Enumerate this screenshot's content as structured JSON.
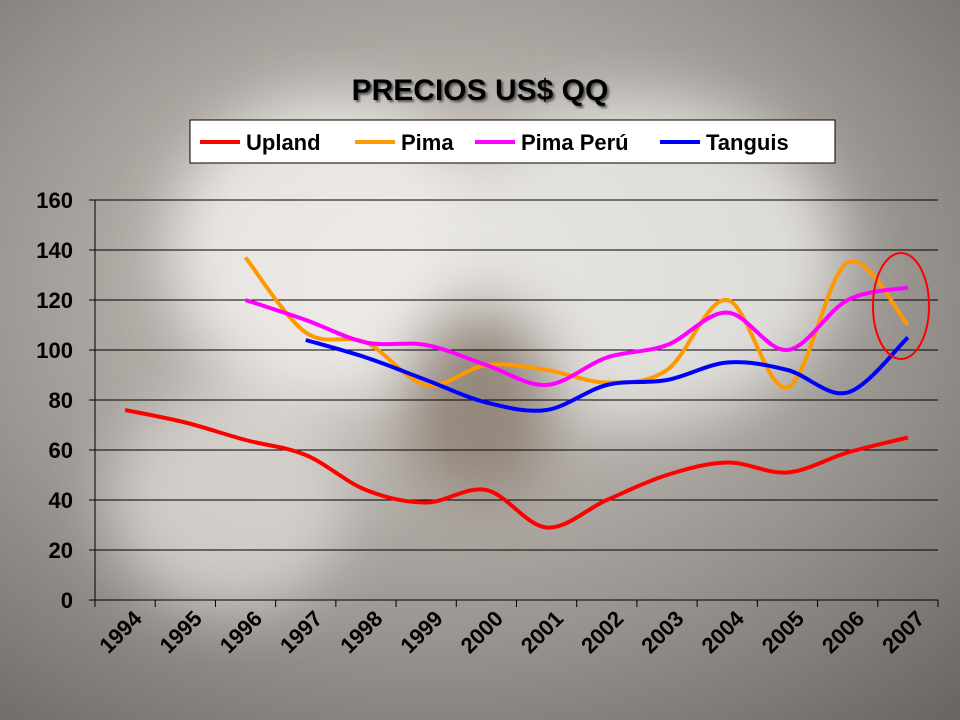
{
  "chart_data": {
    "type": "line",
    "title": "PRECIOS US$ QQ",
    "categories": [
      "1994",
      "1995",
      "1996",
      "1997",
      "1998",
      "1999",
      "2000",
      "2001",
      "2002",
      "2003",
      "2004",
      "2005",
      "2006",
      "2007"
    ],
    "series": [
      {
        "name": "Upland",
        "color": "#ff0000",
        "values": [
          76,
          71,
          64,
          58,
          44,
          39,
          44,
          29,
          40,
          50,
          55,
          51,
          59,
          65
        ]
      },
      {
        "name": "Pima",
        "color": "#ff9900",
        "values": [
          null,
          null,
          137,
          107,
          103,
          86,
          94,
          92,
          87,
          92,
          120,
          85,
          135,
          110
        ]
      },
      {
        "name": "Pima Perú",
        "color": "#ff00ff",
        "values": [
          null,
          null,
          120,
          112,
          103,
          102,
          94,
          86,
          97,
          102,
          115,
          100,
          120,
          125
        ]
      },
      {
        "name": "Tanguis",
        "color": "#0000ff",
        "values": [
          null,
          null,
          null,
          104,
          97,
          88,
          79,
          76,
          86,
          88,
          95,
          92,
          83,
          105
        ]
      }
    ],
    "ylim": [
      0,
      160
    ],
    "yticks": [
      0,
      20,
      40,
      60,
      80,
      100,
      120,
      140,
      160
    ],
    "grid": true,
    "legend": "top"
  }
}
